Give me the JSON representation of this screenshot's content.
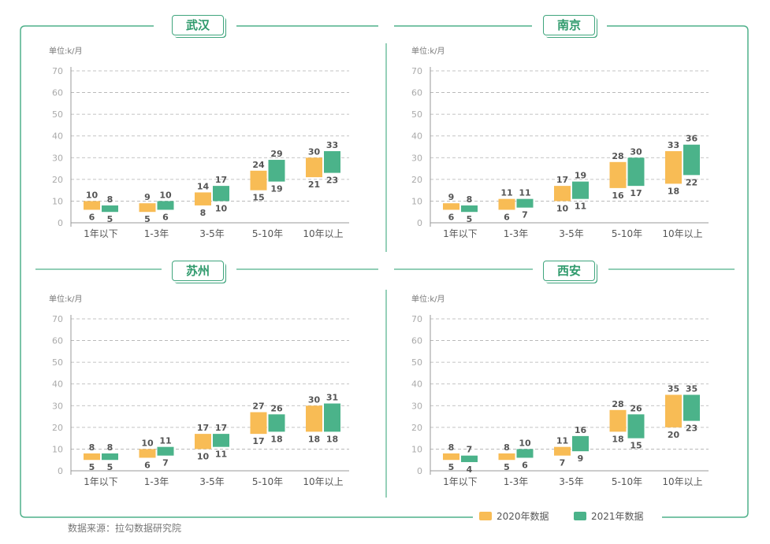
{
  "colors": {
    "y2020": "#f8bc55",
    "y2021": "#4bb38a",
    "frame": "#4fb08a",
    "grid": "#b0b0b0",
    "axis": "#999999",
    "label": "#555555"
  },
  "legend": {
    "y2020": "2020年数据",
    "y2021": "2021年数据"
  },
  "source": "数据来源：拉勾数据研究院",
  "chart_data": [
    {
      "type": "bar",
      "subtype": "floating-range",
      "title": "武汉",
      "unit": "单位:k/月",
      "ylim": [
        0,
        70
      ],
      "yticks": [
        "0",
        "10",
        "20",
        "30",
        "40",
        "50",
        "60",
        "70"
      ],
      "grid": true,
      "categories": [
        "1年以下",
        "1-3年",
        "3-5年",
        "5-10年",
        "10年以上"
      ],
      "series": [
        {
          "name": "2020年数据",
          "low": [
            6,
            5,
            8,
            15,
            21
          ],
          "high": [
            10,
            9,
            14,
            24,
            30
          ]
        },
        {
          "name": "2021年数据",
          "low": [
            5,
            6,
            10,
            19,
            23
          ],
          "high": [
            8,
            10,
            17,
            29,
            33
          ]
        }
      ]
    },
    {
      "type": "bar",
      "subtype": "floating-range",
      "title": "南京",
      "unit": "单位:k/月",
      "ylim": [
        0,
        70
      ],
      "yticks": [
        "0",
        "10",
        "20",
        "30",
        "40",
        "50",
        "60",
        "70"
      ],
      "grid": true,
      "categories": [
        "1年以下",
        "1-3年",
        "3-5年",
        "5-10年",
        "10年以上"
      ],
      "series": [
        {
          "name": "2020年数据",
          "low": [
            6,
            6,
            10,
            16,
            18
          ],
          "high": [
            9,
            11,
            17,
            28,
            33
          ]
        },
        {
          "name": "2021年数据",
          "low": [
            5,
            7,
            11,
            17,
            22
          ],
          "high": [
            8,
            11,
            19,
            30,
            36
          ]
        }
      ]
    },
    {
      "type": "bar",
      "subtype": "floating-range",
      "title": "苏州",
      "unit": "单位:k/月",
      "ylim": [
        0,
        70
      ],
      "yticks": [
        "0",
        "10",
        "20",
        "30",
        "40",
        "50",
        "60",
        "70"
      ],
      "grid": true,
      "categories": [
        "1年以下",
        "1-3年",
        "3-5年",
        "5-10年",
        "10年以上"
      ],
      "series": [
        {
          "name": "2020年数据",
          "low": [
            5,
            6,
            10,
            17,
            18
          ],
          "high": [
            8,
            10,
            17,
            27,
            30
          ]
        },
        {
          "name": "2021年数据",
          "low": [
            5,
            7,
            11,
            18,
            18
          ],
          "high": [
            8,
            11,
            17,
            26,
            31
          ]
        }
      ]
    },
    {
      "type": "bar",
      "subtype": "floating-range",
      "title": "西安",
      "unit": "单位:k/月",
      "ylim": [
        0,
        70
      ],
      "yticks": [
        "0",
        "10",
        "20",
        "30",
        "40",
        "50",
        "60",
        "70"
      ],
      "grid": true,
      "categories": [
        "1年以下",
        "1-3年",
        "3-5年",
        "5-10年",
        "10年以上"
      ],
      "series": [
        {
          "name": "2020年数据",
          "low": [
            5,
            5,
            7,
            18,
            20
          ],
          "high": [
            8,
            8,
            11,
            28,
            35
          ]
        },
        {
          "name": "2021年数据",
          "low": [
            4,
            6,
            9,
            15,
            23
          ],
          "high": [
            7,
            10,
            16,
            26,
            35
          ]
        }
      ]
    }
  ]
}
